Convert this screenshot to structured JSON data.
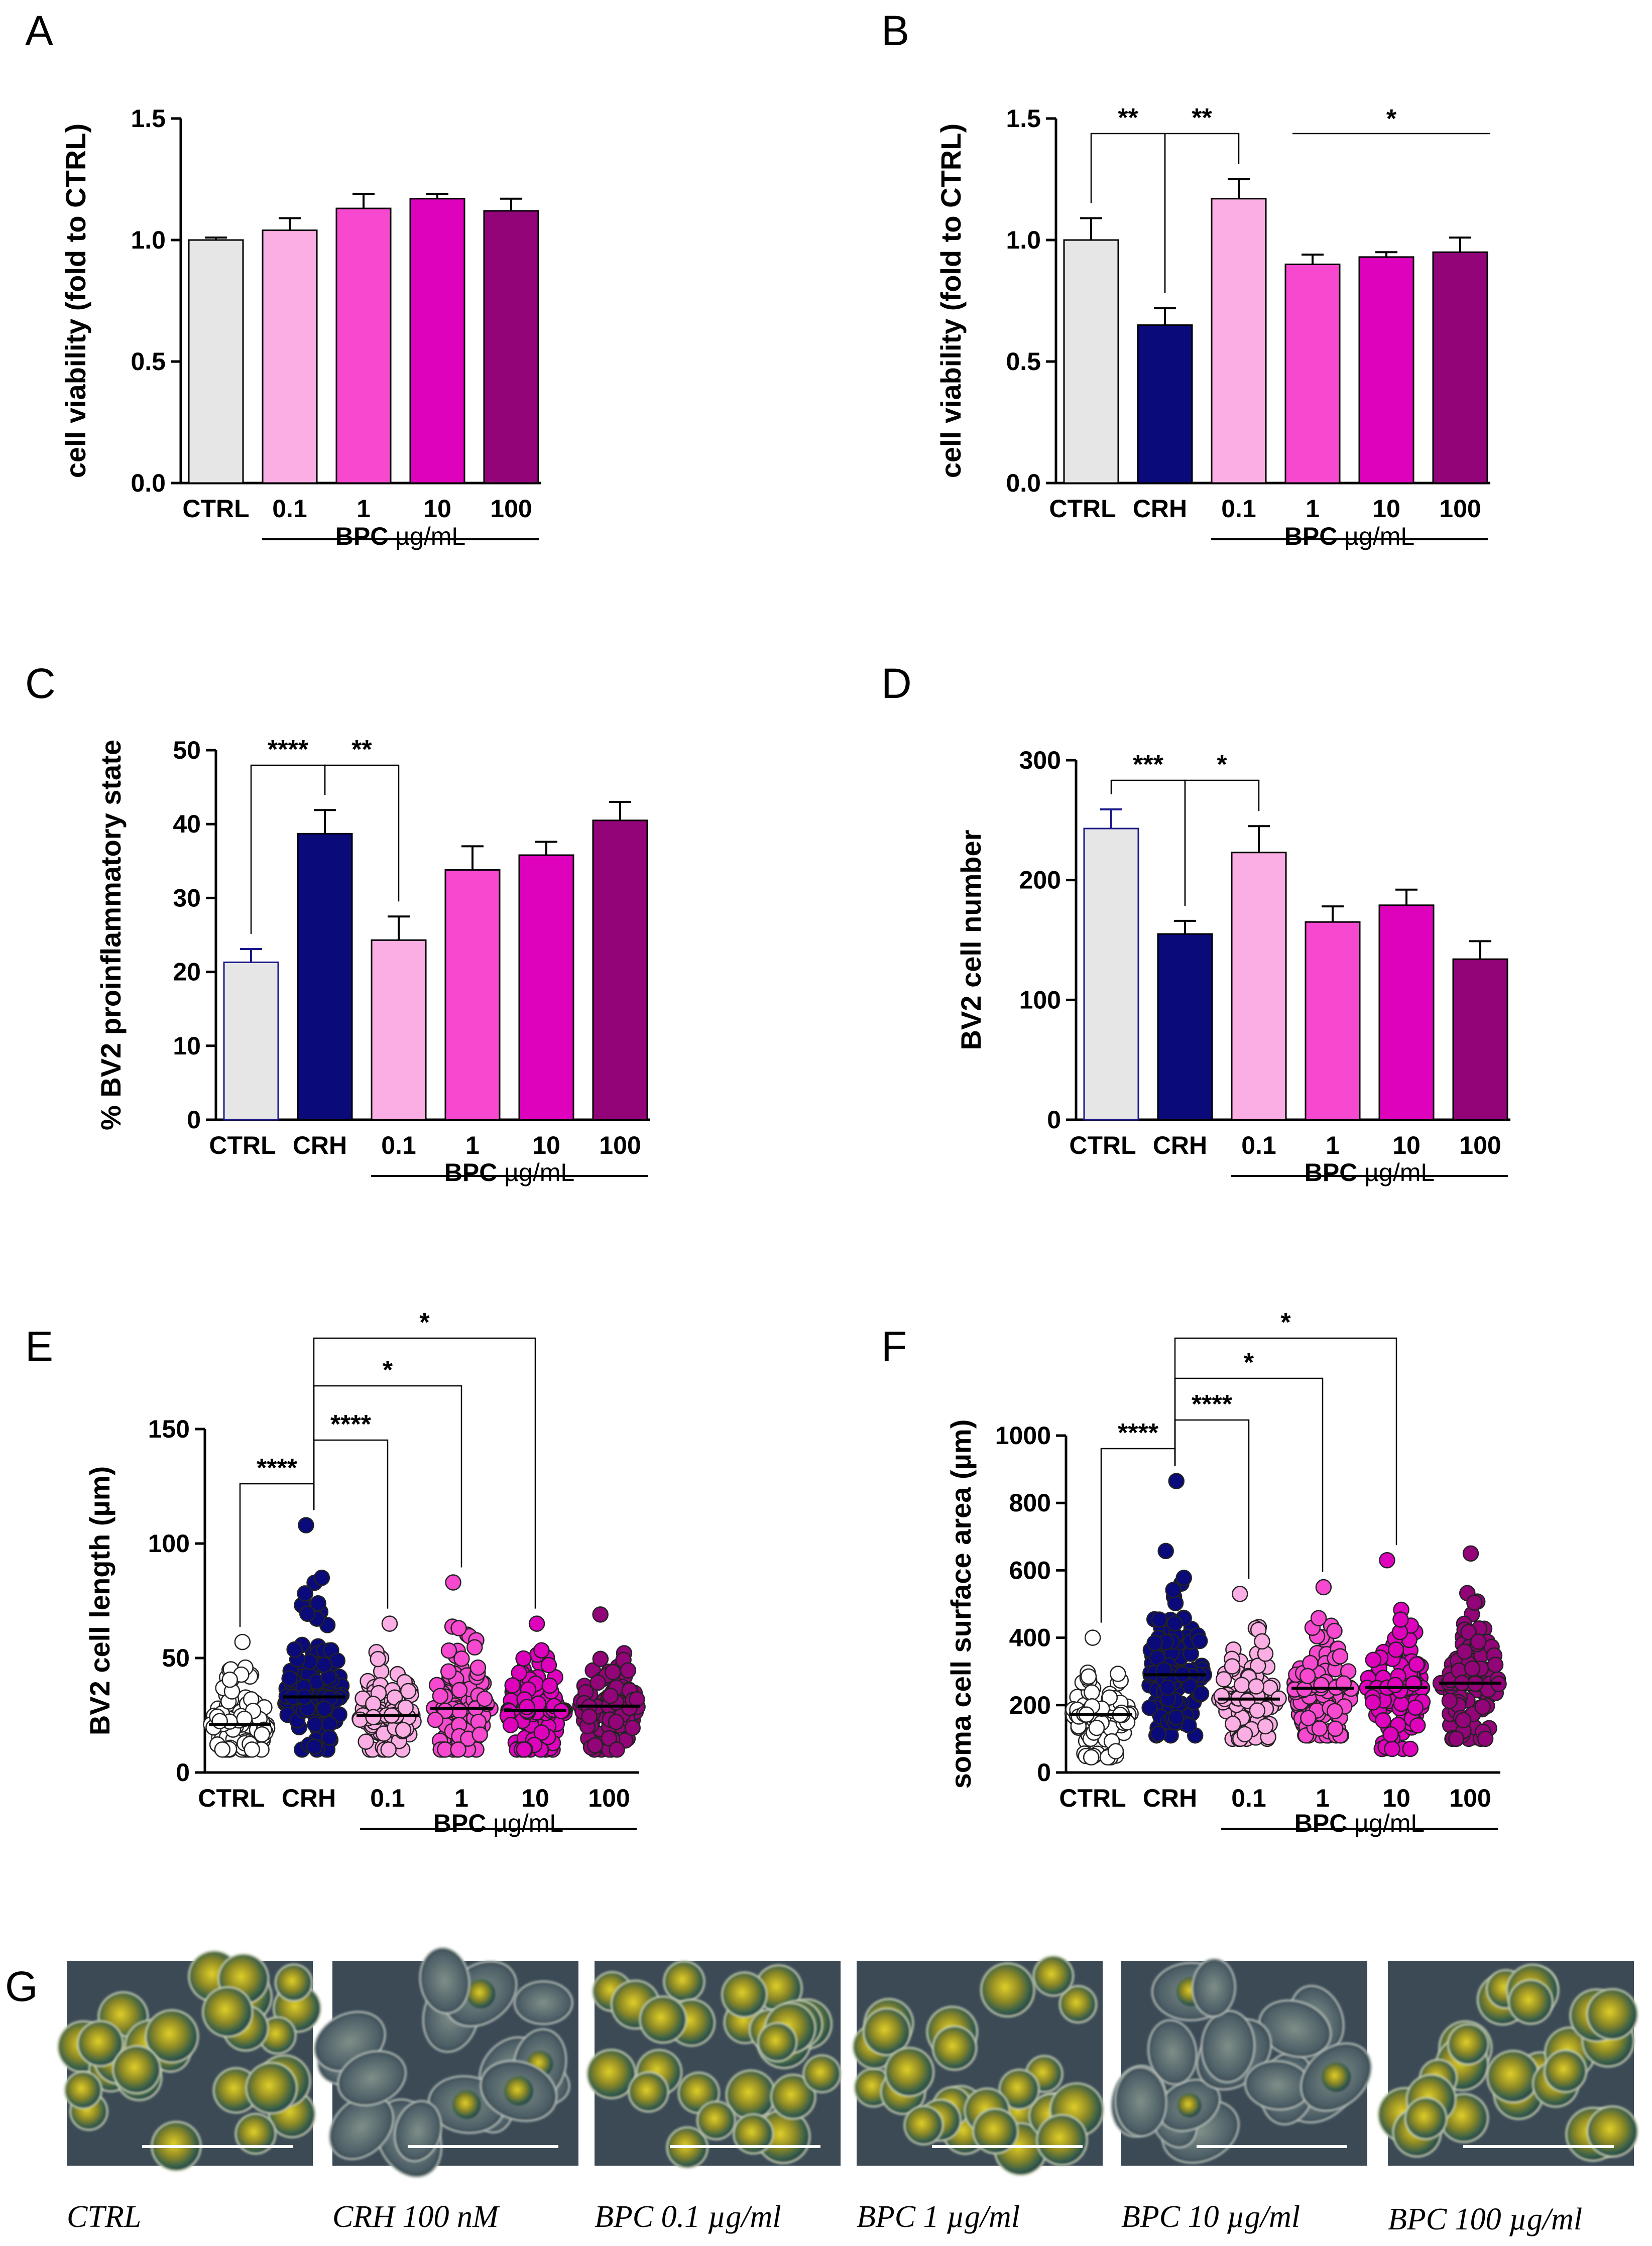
{
  "colors": {
    "CTRL": "#e6e6e6",
    "CRH": "#0a0a7a",
    "BPC 0.1": "#fbaee3",
    "BPC 1": "#f649cf",
    "BPC 10": "#de02bd",
    "BPC 100": "#920478"
  },
  "bpc_unit": {
    "bold": "BPC",
    "unit": " µg/mL"
  },
  "chart_data": [
    {
      "id": "A",
      "type": "bar",
      "letter": "A",
      "ylabel": "cell viability (fold to CTRL)",
      "ylim": [
        0,
        1.5
      ],
      "yticks": [
        "0.0",
        "0.5",
        "1.0",
        "1.5"
      ],
      "categories": [
        "CTRL",
        "0.1",
        "1",
        "10",
        "100"
      ],
      "groups": [
        "CTRL",
        "BPC 0.1",
        "BPC 1",
        "BPC 10",
        "BPC 100"
      ],
      "values": [
        1.0,
        1.04,
        1.13,
        1.17,
        1.12
      ],
      "errors": [
        0.01,
        0.05,
        0.06,
        0.02,
        0.05
      ],
      "significance": []
    },
    {
      "id": "B",
      "type": "bar",
      "letter": "B",
      "ylabel": "cell viability (fold to CTRL)",
      "ylim": [
        0,
        1.5
      ],
      "yticks": [
        "0.0",
        "0.5",
        "1.0",
        "1.5"
      ],
      "categories": [
        "CTRL",
        "CRH",
        "0.1",
        "1",
        "10",
        "100"
      ],
      "groups": [
        "CTRL",
        "CRH",
        "BPC 0.1",
        "BPC 1",
        "BPC 10",
        "BPC 100"
      ],
      "values": [
        1.0,
        0.65,
        1.17,
        0.9,
        0.93,
        0.95
      ],
      "errors": [
        0.09,
        0.07,
        0.08,
        0.04,
        0.02,
        0.06
      ],
      "significance": [
        {
          "from": "CTRL",
          "to": "CRH",
          "label": "**"
        },
        {
          "from": "CRH",
          "to": "0.1",
          "label": "**"
        },
        {
          "from": "1",
          "to": "100",
          "label": "*",
          "style": "line"
        }
      ]
    },
    {
      "id": "C",
      "type": "bar",
      "letter": "C",
      "ylabel": "% BV2 proinflammatory state",
      "ylim": [
        0,
        50
      ],
      "yticks": [
        "0",
        "10",
        "20",
        "30",
        "40",
        "50"
      ],
      "categories": [
        "CTRL",
        "CRH",
        "0.1",
        "1",
        "10",
        "100"
      ],
      "groups": [
        "CTRL",
        "CRH",
        "BPC 0.1",
        "BPC 1",
        "BPC 10",
        "BPC 100"
      ],
      "values": [
        21.3,
        38.7,
        24.3,
        33.8,
        35.8,
        40.5
      ],
      "errors": [
        1.8,
        3.2,
        3.2,
        3.2,
        1.8,
        2.5
      ],
      "significance": [
        {
          "from": "CTRL",
          "to": "CRH",
          "label": "****"
        },
        {
          "from": "CRH",
          "to": "0.1",
          "label": "**"
        }
      ]
    },
    {
      "id": "D",
      "type": "bar",
      "letter": "D",
      "ylabel": "BV2 cell number",
      "ylim": [
        0,
        300
      ],
      "yticks": [
        "0",
        "100",
        "200",
        "300"
      ],
      "categories": [
        "CTRL",
        "CRH",
        "0.1",
        "1",
        "10",
        "100"
      ],
      "groups": [
        "CTRL",
        "CRH",
        "BPC 0.1",
        "BPC 1",
        "BPC 10",
        "BPC 100"
      ],
      "values": [
        243,
        155,
        223,
        165,
        179,
        134
      ],
      "errors": [
        16,
        11,
        22,
        13,
        13,
        15
      ],
      "significance": [
        {
          "from": "CTRL",
          "to": "CRH",
          "label": "***"
        },
        {
          "from": "CRH",
          "to": "0.1",
          "label": "*"
        }
      ]
    },
    {
      "id": "E",
      "type": "scatter",
      "letter": "E",
      "ylabel": "BV2 cell length (µm)",
      "ylim": [
        0,
        150
      ],
      "yticks": [
        "0",
        "50",
        "100",
        "150"
      ],
      "categories": [
        "CTRL",
        "CRH",
        "0.1",
        "1",
        "10",
        "100"
      ],
      "groups": [
        "CTRL",
        "CRH",
        "BPC 0.1",
        "BPC 1",
        "BPC 10",
        "BPC 100"
      ],
      "means": [
        21,
        33,
        25,
        28,
        27,
        29
      ],
      "min": [
        10,
        10,
        10,
        10,
        10,
        10
      ],
      "max": [
        57,
        108,
        65,
        83,
        65,
        69
      ],
      "significance": [
        {
          "from": "CTRL",
          "to": "CRH",
          "label": "****"
        },
        {
          "from": "CRH",
          "to": "0.1",
          "label": "****"
        },
        {
          "from": "CRH",
          "to": "1",
          "label": "*"
        },
        {
          "from": "CRH",
          "to": "10",
          "label": "*"
        }
      ]
    },
    {
      "id": "F",
      "type": "scatter",
      "letter": "F",
      "ylabel": "soma cell surface area (µm)",
      "ylim": [
        0,
        1000
      ],
      "yticks": [
        "0",
        "200",
        "400",
        "600",
        "800",
        "1000"
      ],
      "categories": [
        "CTRL",
        "CRH",
        "0.1",
        "1",
        "10",
        "100"
      ],
      "groups": [
        "CTRL",
        "CRH",
        "BPC 0.1",
        "BPC 1",
        "BPC 10",
        "BPC 100"
      ],
      "means": [
        172,
        290,
        218,
        250,
        252,
        265
      ],
      "min": [
        45,
        110,
        100,
        110,
        70,
        100
      ],
      "max": [
        400,
        865,
        530,
        550,
        630,
        650
      ],
      "significance": [
        {
          "from": "CTRL",
          "to": "CRH",
          "label": "****"
        },
        {
          "from": "CRH",
          "to": "0.1",
          "label": "****"
        },
        {
          "from": "CRH",
          "to": "1",
          "label": "*"
        },
        {
          "from": "CRH",
          "to": "10",
          "label": "*"
        }
      ]
    }
  ],
  "micrographs": {
    "letter": "G",
    "captions": [
      "CTRL",
      "CRH 100 nM",
      "BPC  0.1 µg/ml",
      "BPC 1 µg/ml",
      "BPC 10 µg/ml",
      "BPC 100 µg/ml"
    ],
    "groups": [
      "CTRL",
      "CRH",
      "BPC 0.1",
      "BPC 1",
      "BPC 10",
      "BPC 100"
    ]
  }
}
